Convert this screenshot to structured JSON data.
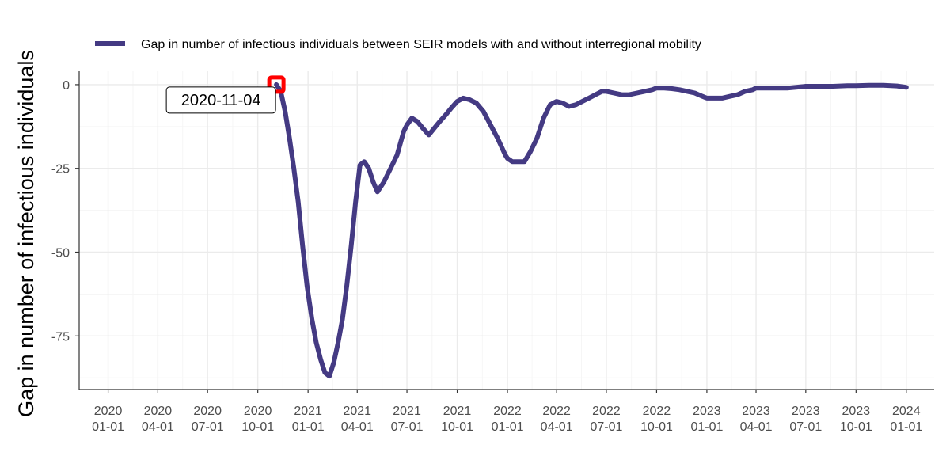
{
  "chart_data": {
    "type": "line",
    "title": "",
    "xlabel": "",
    "ylabel": "Gap in number of infectious individuals",
    "x_axis": {
      "type": "date",
      "range": [
        "2019-11-09",
        "2024-02-21"
      ],
      "ticks": [
        {
          "date": "2020-01-01",
          "label": [
            "2020",
            "01-01"
          ]
        },
        {
          "date": "2020-04-01",
          "label": [
            "2020",
            "04-01"
          ]
        },
        {
          "date": "2020-07-01",
          "label": [
            "2020",
            "07-01"
          ]
        },
        {
          "date": "2020-10-01",
          "label": [
            "2020",
            "10-01"
          ]
        },
        {
          "date": "2021-01-01",
          "label": [
            "2021",
            "01-01"
          ]
        },
        {
          "date": "2021-04-01",
          "label": [
            "2021",
            "04-01"
          ]
        },
        {
          "date": "2021-07-01",
          "label": [
            "2021",
            "07-01"
          ]
        },
        {
          "date": "2021-10-01",
          "label": [
            "2021",
            "10-01"
          ]
        },
        {
          "date": "2022-01-01",
          "label": [
            "2022",
            "01-01"
          ]
        },
        {
          "date": "2022-04-01",
          "label": [
            "2022",
            "04-01"
          ]
        },
        {
          "date": "2022-07-01",
          "label": [
            "2022",
            "07-01"
          ]
        },
        {
          "date": "2022-10-01",
          "label": [
            "2022",
            "10-01"
          ]
        },
        {
          "date": "2023-01-01",
          "label": [
            "2023",
            "01-01"
          ]
        },
        {
          "date": "2023-04-01",
          "label": [
            "2023",
            "04-01"
          ]
        },
        {
          "date": "2023-07-01",
          "label": [
            "2023",
            "07-01"
          ]
        },
        {
          "date": "2023-10-01",
          "label": [
            "2023",
            "10-01"
          ]
        },
        {
          "date": "2024-01-01",
          "label": [
            "2024",
            "01-01"
          ]
        }
      ]
    },
    "y_axis": {
      "range": [
        -91,
        4
      ],
      "ticks": [
        0,
        -25,
        -50,
        -75
      ],
      "tick_labels": [
        "0",
        "-25",
        "-50",
        "-75"
      ]
    },
    "grid": true,
    "legend": {
      "position": "top-left"
    },
    "series": [
      {
        "name": "Gap in number of infectious individuals between SEIR models with and without interregional mobility",
        "color": "#443A83",
        "x": [
          "2020-11-04",
          "2020-11-12",
          "2020-11-20",
          "2020-11-28",
          "2020-12-06",
          "2020-12-14",
          "2020-12-22",
          "2020-12-30",
          "2021-01-08",
          "2021-01-16",
          "2021-01-24",
          "2021-02-01",
          "2021-02-09",
          "2021-02-17",
          "2021-02-25",
          "2021-03-05",
          "2021-03-13",
          "2021-03-21",
          "2021-03-29",
          "2021-04-06",
          "2021-04-14",
          "2021-04-22",
          "2021-04-30",
          "2021-05-08",
          "2021-05-20",
          "2021-06-01",
          "2021-06-13",
          "2021-06-25",
          "2021-07-01",
          "2021-07-10",
          "2021-07-20",
          "2021-07-30",
          "2021-08-10",
          "2021-08-20",
          "2021-08-30",
          "2021-09-10",
          "2021-09-20",
          "2021-10-01",
          "2021-10-12",
          "2021-10-24",
          "2021-11-05",
          "2021-11-18",
          "2021-12-01",
          "2021-12-14",
          "2021-12-28",
          "2022-01-01",
          "2022-01-10",
          "2022-01-20",
          "2022-02-01",
          "2022-02-12",
          "2022-02-24",
          "2022-03-08",
          "2022-03-20",
          "2022-04-01",
          "2022-04-12",
          "2022-04-24",
          "2022-05-06",
          "2022-05-18",
          "2022-05-30",
          "2022-06-11",
          "2022-06-23",
          "2022-07-01",
          "2022-07-15",
          "2022-07-29",
          "2022-08-12",
          "2022-08-26",
          "2022-09-09",
          "2022-09-23",
          "2022-10-01",
          "2022-10-15",
          "2022-10-29",
          "2022-11-12",
          "2022-11-26",
          "2022-12-10",
          "2022-12-24",
          "2023-01-01",
          "2023-01-15",
          "2023-01-29",
          "2023-02-12",
          "2023-02-26",
          "2023-03-12",
          "2023-03-26",
          "2023-04-01",
          "2023-04-20",
          "2023-05-10",
          "2023-05-30",
          "2023-06-19",
          "2023-07-01",
          "2023-07-25",
          "2023-08-20",
          "2023-09-15",
          "2023-10-01",
          "2023-10-25",
          "2023-11-20",
          "2023-12-15",
          "2024-01-01"
        ],
        "y": [
          0,
          -2,
          -8,
          -16,
          -25,
          -35,
          -48,
          -60,
          -70,
          -77,
          -82,
          -86,
          -87,
          -83,
          -77,
          -70,
          -60,
          -48,
          -35,
          -24,
          -23,
          -25,
          -29,
          -32,
          -29,
          -25,
          -21,
          -14,
          -12,
          -10,
          -11,
          -13,
          -15,
          -13,
          -11,
          -9,
          -7,
          -5,
          -4,
          -4.5,
          -5.5,
          -8,
          -12,
          -16,
          -21,
          -22,
          -23,
          -23,
          -23,
          -20,
          -16,
          -10,
          -6,
          -5,
          -5.5,
          -6.5,
          -6,
          -5,
          -4,
          -3,
          -2,
          -2,
          -2.5,
          -3,
          -3,
          -2.5,
          -2,
          -1.5,
          -1,
          -1,
          -1.2,
          -1.5,
          -2,
          -2.5,
          -3.5,
          -4,
          -4,
          -4,
          -3.5,
          -3,
          -2,
          -1.5,
          -1,
          -1,
          -1,
          -1,
          -0.7,
          -0.5,
          -0.5,
          -0.5,
          -0.3,
          -0.3,
          -0.2,
          -0.2,
          -0.4,
          -0.8
        ]
      }
    ],
    "annotations": [
      {
        "date": "2020-11-04",
        "value": 0,
        "label": "2020-11-04",
        "marker_color": "#FF0000"
      }
    ]
  }
}
